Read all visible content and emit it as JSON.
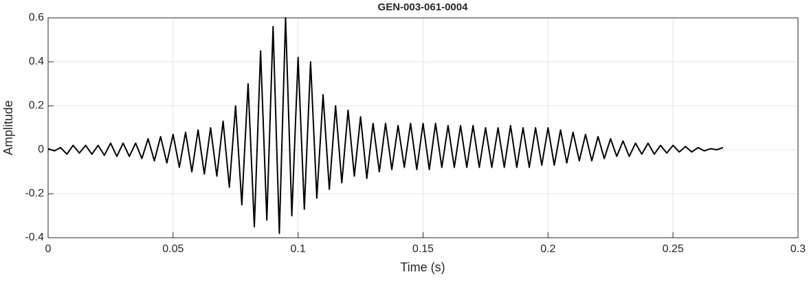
{
  "chart_data": {
    "type": "line",
    "title": "GEN-003-061-0004",
    "x_label": "Time (s)",
    "y_label": "Amplitude",
    "xlim": [
      0,
      0.3
    ],
    "ylim": [
      -0.4,
      0.6
    ],
    "xticks": [
      0,
      0.05,
      0.1,
      0.15,
      0.2,
      0.25,
      0.3
    ],
    "yticks": [
      -0.4,
      -0.2,
      0,
      0.2,
      0.4,
      0.6
    ],
    "grid": true,
    "series": [
      {
        "color": "#000000",
        "x": [
          0,
          0.0025,
          0.005,
          0.0075,
          0.01,
          0.0125,
          0.015,
          0.0175,
          0.02,
          0.0225,
          0.025,
          0.0275,
          0.03,
          0.0325,
          0.035,
          0.0375,
          0.04,
          0.0425,
          0.045,
          0.0475,
          0.05,
          0.0525,
          0.055,
          0.0575,
          0.06,
          0.0625,
          0.065,
          0.0675,
          0.07,
          0.0725,
          0.075,
          0.0775,
          0.08,
          0.0825,
          0.085,
          0.0875,
          0.09,
          0.0925,
          0.095,
          0.0975,
          0.1,
          0.1025,
          0.105,
          0.1075,
          0.11,
          0.1125,
          0.115,
          0.1175,
          0.12,
          0.1225,
          0.125,
          0.1275,
          0.13,
          0.1325,
          0.135,
          0.1375,
          0.14,
          0.1425,
          0.145,
          0.1475,
          0.15,
          0.1525,
          0.155,
          0.1575,
          0.16,
          0.1625,
          0.165,
          0.1675,
          0.17,
          0.1725,
          0.175,
          0.1775,
          0.18,
          0.1825,
          0.185,
          0.1875,
          0.19,
          0.1925,
          0.195,
          0.1975,
          0.2,
          0.2025,
          0.205,
          0.2075,
          0.21,
          0.2125,
          0.215,
          0.2175,
          0.22,
          0.2225,
          0.225,
          0.2275,
          0.23,
          0.2325,
          0.235,
          0.2375,
          0.24,
          0.2425,
          0.245,
          0.2475,
          0.25,
          0.2525,
          0.255,
          0.2575,
          0.26,
          0.2625,
          0.265,
          0.2675,
          0.27
        ],
        "values": [
          0.005,
          -0.005,
          0.01,
          -0.02,
          0.02,
          -0.015,
          0.02,
          -0.02,
          0.02,
          -0.025,
          0.03,
          -0.03,
          0.03,
          -0.03,
          0.03,
          -0.04,
          0.05,
          -0.05,
          0.06,
          -0.06,
          0.07,
          -0.08,
          0.08,
          -0.1,
          0.09,
          -0.11,
          0.1,
          -0.12,
          0.13,
          -0.17,
          0.2,
          -0.25,
          0.3,
          -0.35,
          0.45,
          -0.32,
          0.56,
          -0.38,
          0.6,
          -0.3,
          0.42,
          -0.27,
          0.4,
          -0.22,
          0.25,
          -0.18,
          0.2,
          -0.15,
          0.18,
          -0.12,
          0.15,
          -0.13,
          0.12,
          -0.1,
          0.12,
          -0.09,
          0.11,
          -0.08,
          0.12,
          -0.09,
          0.12,
          -0.09,
          0.12,
          -0.08,
          0.11,
          -0.08,
          0.11,
          -0.08,
          0.11,
          -0.08,
          0.1,
          -0.08,
          0.1,
          -0.08,
          0.11,
          -0.08,
          0.1,
          -0.08,
          0.1,
          -0.07,
          0.1,
          -0.07,
          0.09,
          -0.06,
          0.08,
          -0.05,
          0.07,
          -0.05,
          0.06,
          -0.04,
          0.05,
          -0.03,
          0.04,
          -0.03,
          0.03,
          -0.02,
          0.03,
          -0.02,
          0.02,
          -0.015,
          0.02,
          -0.01,
          0.015,
          -0.01,
          0.01,
          -0.005,
          0.005,
          0,
          0.01
        ]
      }
    ]
  }
}
